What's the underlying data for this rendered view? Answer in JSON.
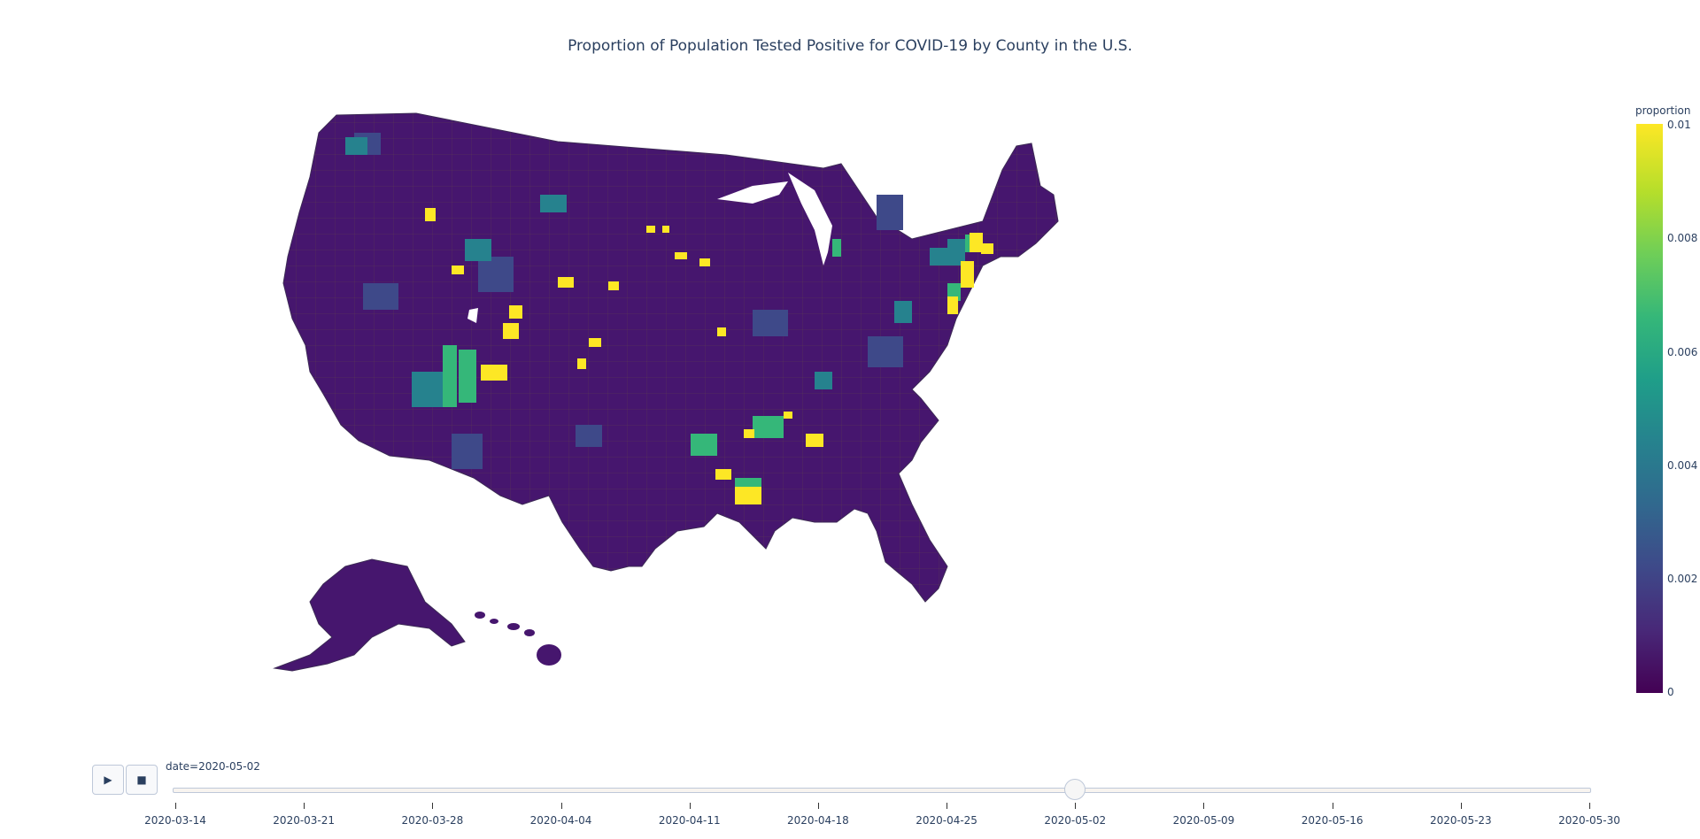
{
  "title": "Proportion of Population Tested Positive for COVID-19 by County in the U.S.",
  "colorbar": {
    "title": "proportion",
    "ticks": [
      "0.01",
      "0.008",
      "0.006",
      "0.004",
      "0.002",
      "0"
    ],
    "colors": [
      "#440154",
      "#482878",
      "#3e4989",
      "#31688e",
      "#26828e",
      "#1f9e89",
      "#35b779",
      "#6ece58",
      "#b5de2b",
      "#fde725"
    ]
  },
  "animation": {
    "play_icon": "▶",
    "stop_icon": "■",
    "current_label": "date=2020-05-02",
    "current_date": "2020-05-02",
    "dates": [
      "2020-03-14",
      "2020-03-21",
      "2020-03-28",
      "2020-04-04",
      "2020-04-11",
      "2020-04-18",
      "2020-04-25",
      "2020-05-02",
      "2020-05-09",
      "2020-05-16",
      "2020-05-23",
      "2020-05-30"
    ]
  },
  "map_colors": {
    "background_fill": "#46166e",
    "border": "#6a5a3a",
    "hotspot_high": "#fde725",
    "hotspot_mid": "#35b779",
    "hotspot_low": "#26828e"
  }
}
